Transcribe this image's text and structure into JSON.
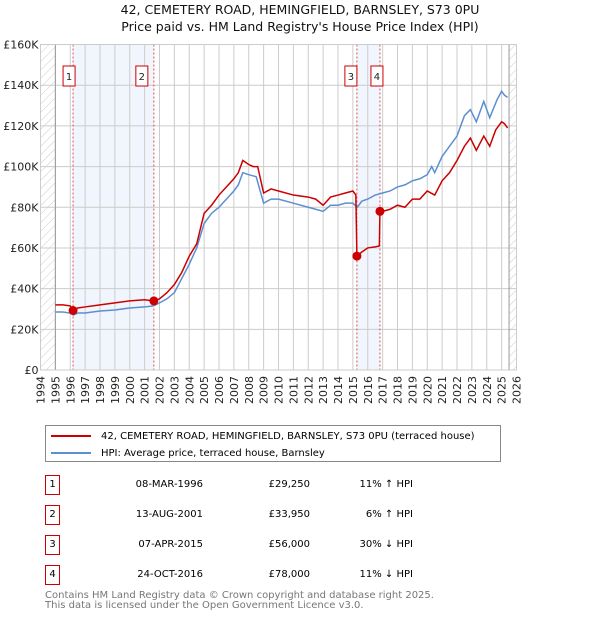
{
  "chart_data": {
    "type": "line",
    "title": "42, CEMETERY ROAD, HEMINGFIELD, BARNSLEY, S73 0PU",
    "subtitle": "Price paid vs. HM Land Registry's House Price Index (HPI)",
    "xlim": [
      1994,
      2026
    ],
    "ylim": [
      0,
      160000
    ],
    "x_ticks": [
      1994,
      1995,
      1996,
      1997,
      1998,
      1999,
      2000,
      2001,
      2002,
      2003,
      2004,
      2005,
      2006,
      2007,
      2008,
      2009,
      2010,
      2011,
      2012,
      2013,
      2014,
      2015,
      2016,
      2017,
      2018,
      2019,
      2020,
      2021,
      2022,
      2023,
      2024,
      2025,
      2026
    ],
    "y_ticks": [
      {
        "v": 0,
        "label": "£0"
      },
      {
        "v": 20000,
        "label": "£20K"
      },
      {
        "v": 40000,
        "label": "£40K"
      },
      {
        "v": 60000,
        "label": "£60K"
      },
      {
        "v": 80000,
        "label": "£80K"
      },
      {
        "v": 100000,
        "label": "£100K"
      },
      {
        "v": 120000,
        "label": "£120K"
      },
      {
        "v": 140000,
        "label": "£140K"
      },
      {
        "v": 160000,
        "label": "£160K"
      }
    ],
    "grid": true,
    "hatched_ranges": [
      [
        1994,
        1995
      ],
      [
        2025.5,
        2026
      ]
    ],
    "shaded_ranges": [
      [
        1996.19,
        2001.62
      ],
      [
        2015.27,
        2016.82
      ]
    ],
    "series": [
      {
        "name": "42, CEMETERY ROAD, HEMINGFIELD, BARNSLEY, S73 0PU (terraced house)",
        "color": "#cc0000",
        "x": [
          1995,
          1995.5,
          1996,
          1996.19,
          1996.5,
          1997,
          1998,
          1999,
          2000,
          2001,
          2001.62,
          2002,
          2002.5,
          2003,
          2003.5,
          2004,
          2004.5,
          2005,
          2005.5,
          2006,
          2006.5,
          2007,
          2007.3,
          2007.6,
          2008,
          2008.3,
          2008.6,
          2009,
          2009.5,
          2010,
          2011,
          2012,
          2012.5,
          2013,
          2013.5,
          2014,
          2014.5,
          2015,
          2015.2,
          2015.27,
          2015.6,
          2016,
          2016.5,
          2016.78,
          2016.82,
          2017,
          2017.5,
          2018,
          2018.5,
          2019,
          2019.5,
          2020,
          2020.5,
          2021,
          2021.5,
          2022,
          2022.5,
          2022.9,
          2023.3,
          2023.8,
          2024.2,
          2024.6,
          2025,
          2025.2,
          2025.4
        ],
        "y": [
          32000,
          32000,
          31500,
          29250,
          30500,
          31000,
          32000,
          33000,
          34000,
          34500,
          33950,
          35000,
          38000,
          42000,
          48000,
          56000,
          62000,
          77000,
          81000,
          86000,
          90000,
          94000,
          97000,
          103000,
          101000,
          100000,
          100000,
          87000,
          89000,
          88000,
          86000,
          85000,
          84000,
          81000,
          85000,
          86000,
          87000,
          88000,
          86000,
          56000,
          58000,
          60000,
          60500,
          61000,
          78000,
          78000,
          79000,
          81000,
          80000,
          84000,
          84000,
          88000,
          86000,
          93000,
          97000,
          103000,
          110000,
          114000,
          108000,
          115000,
          110000,
          118000,
          122000,
          121000,
          119000
        ]
      },
      {
        "name": "HPI: Average price, terraced house, Barnsley",
        "color": "#5b8fd0",
        "x": [
          1995,
          1995.5,
          1996,
          1996.2,
          1996.5,
          1997,
          1998,
          1999,
          2000,
          2001,
          2001.6,
          2002,
          2002.5,
          2003,
          2003.5,
          2004,
          2004.5,
          2005,
          2005.5,
          2006,
          2006.5,
          2007,
          2007.3,
          2007.6,
          2008,
          2008.5,
          2009,
          2009.5,
          2010,
          2011,
          2012,
          2012.5,
          2013,
          2013.5,
          2014,
          2014.5,
          2015,
          2015.3,
          2015.6,
          2016,
          2016.5,
          2017,
          2017.5,
          2018,
          2018.5,
          2019,
          2019.5,
          2020,
          2020.3,
          2020.5,
          2021,
          2021.5,
          2022,
          2022.5,
          2022.9,
          2023.3,
          2023.8,
          2024.2,
          2024.7,
          2025,
          2025.2,
          2025.4
        ],
        "y": [
          28500,
          28500,
          28000,
          27000,
          28000,
          28000,
          29000,
          29500,
          30500,
          31000,
          31500,
          33000,
          35000,
          38000,
          45000,
          52000,
          60000,
          72000,
          77000,
          80000,
          84000,
          88000,
          91000,
          97000,
          96000,
          95000,
          82000,
          84000,
          84000,
          82000,
          80000,
          79000,
          78000,
          81000,
          81000,
          82000,
          82000,
          80000,
          83000,
          84000,
          86000,
          87000,
          88000,
          90000,
          91000,
          93000,
          94000,
          96000,
          100000,
          97000,
          105000,
          110000,
          115000,
          125000,
          128000,
          122000,
          132000,
          124000,
          133000,
          137000,
          135000,
          134000
        ]
      }
    ],
    "sales": [
      {
        "id": "1",
        "x": 1996.19,
        "y": 29250
      },
      {
        "id": "2",
        "x": 2001.62,
        "y": 33950
      },
      {
        "id": "3",
        "x": 2015.27,
        "y": 56000
      },
      {
        "id": "4",
        "x": 2016.82,
        "y": 78000
      }
    ]
  },
  "legend": [
    {
      "label": "42, CEMETERY ROAD, HEMINGFIELD, BARNSLEY, S73 0PU (terraced house)",
      "color": "#cc0000"
    },
    {
      "label": "HPI: Average price, terraced house, Barnsley",
      "color": "#5b8fd0"
    }
  ],
  "table": [
    {
      "num": "1",
      "date": "08-MAR-1996",
      "price": "£29,250",
      "hpi": "11% ↑ HPI"
    },
    {
      "num": "2",
      "date": "13-AUG-2001",
      "price": "£33,950",
      "hpi": "6% ↑ HPI"
    },
    {
      "num": "3",
      "date": "07-APR-2015",
      "price": "£56,000",
      "hpi": "30% ↓ HPI"
    },
    {
      "num": "4",
      "date": "24-OCT-2016",
      "price": "£78,000",
      "hpi": "11% ↓ HPI"
    }
  ],
  "footer": [
    "Contains HM Land Registry data © Crown copyright and database right 2025.",
    "This data is licensed under the Open Government Licence v3.0."
  ]
}
